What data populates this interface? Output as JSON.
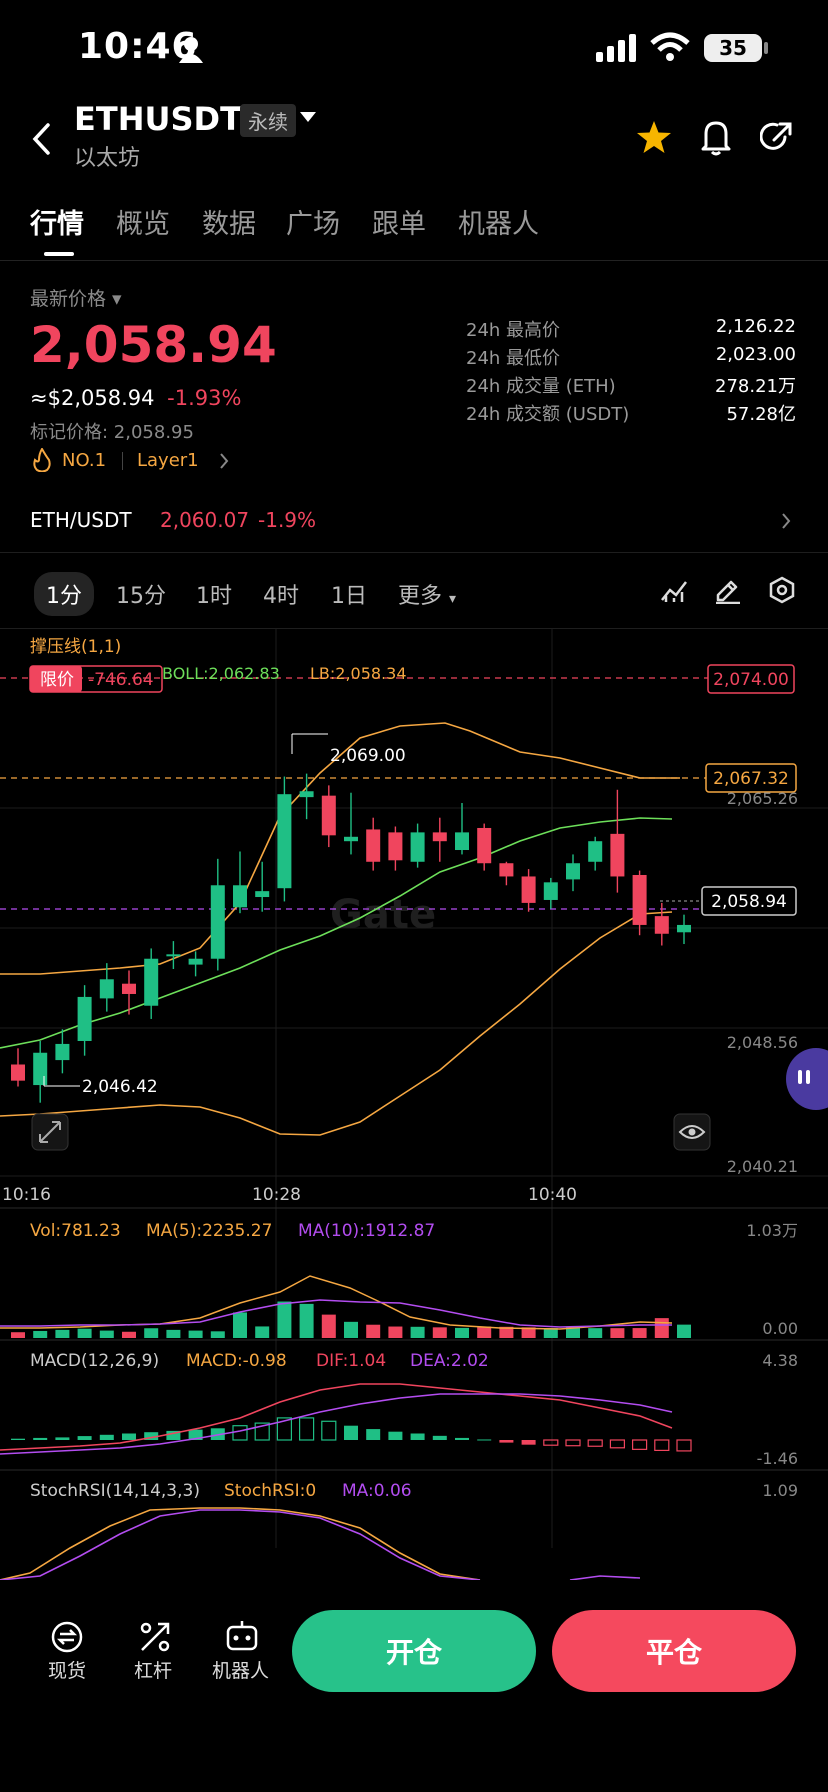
{
  "status_bar": {
    "time": "10:46",
    "battery": "35"
  },
  "header": {
    "symbol": "ETHUSDT",
    "badge": "永续",
    "name": "以太坊"
  },
  "tabs": [
    "行情",
    "概览",
    "数据",
    "广场",
    "跟单",
    "机器人"
  ],
  "price_block": {
    "label": "最新价格",
    "last_price": "2,058.94",
    "usd_equiv": "≈$2,058.94",
    "change_pct": "-1.93%",
    "mark_price": "标记价格: 2,058.95",
    "rank": "NO.1",
    "category": "Layer1"
  },
  "stats": [
    {
      "label": "24h 最高价",
      "value": "2,126.22"
    },
    {
      "label": "24h 最低价",
      "value": "2,023.00"
    },
    {
      "label": "24h 成交量 (ETH)",
      "value": "278.21万"
    },
    {
      "label": "24h 成交额 (USDT)",
      "value": "57.28亿"
    }
  ],
  "spot_pair": {
    "pair": "ETH/USDT",
    "price": "2,060.07",
    "change": "-1.9%"
  },
  "intervals": [
    "1分",
    "15分",
    "1时",
    "4时",
    "1日",
    "更多"
  ],
  "chart_labels": {
    "indicator": "撑压线(1,1)",
    "limit_label": "限价",
    "limit_value": "-746.64",
    "boll": "BOLL:2,062.83",
    "lb": "LB:2,058.34",
    "tag_top": "2,074.00",
    "tag_mid": "2,067.32",
    "tag_last": "2,058.94",
    "high_mark": "2,069.00",
    "low_mark": "2,046.42",
    "axis_right": [
      "2,065.26",
      "2,048.56",
      "2,040.21"
    ],
    "time_axis": [
      "10:16",
      "10:28",
      "10:40"
    ],
    "watermark": "Gate"
  },
  "vol_panel": {
    "vol": "Vol:781.23",
    "ma5": "MA(5):2235.27",
    "ma10": "MA(10):1912.87",
    "max": "1.03万",
    "min": "0.00"
  },
  "macd_panel": {
    "title": "MACD(12,26,9)",
    "macd": "MACD:-0.98",
    "dif": "DIF:1.04",
    "dea": "DEA:2.02",
    "max": "4.38",
    "min": "-1.46"
  },
  "stoch_panel": {
    "title": "StochRSI(14,14,3,3)",
    "k": "StochRSI:0",
    "ma": "MA:0.06",
    "max": "1.09"
  },
  "bottom_nav": {
    "spot": "现货",
    "leverage": "杠杆",
    "bot": "机器人",
    "open": "开仓",
    "close": "平仓"
  },
  "colors": {
    "up": "#1fbf85",
    "down": "#f0455e",
    "orange": "#f5a742",
    "green_line": "#6ddf5a",
    "purple": "#b34df0"
  },
  "chart_data": {
    "type": "candlestick",
    "x_ticks": [
      "10:16",
      "10:28",
      "10:40"
    ],
    "y_ticks": [
      2065.26,
      2048.56,
      2040.21
    ],
    "candles": [
      {
        "o": 2047.8,
        "h": 2048.9,
        "l": 2046.3,
        "c": 2046.7
      },
      {
        "o": 2046.4,
        "h": 2049.4,
        "l": 2045.2,
        "c": 2048.6
      },
      {
        "o": 2048.1,
        "h": 2050.2,
        "l": 2047.2,
        "c": 2049.2
      },
      {
        "o": 2049.4,
        "h": 2053.2,
        "l": 2048.4,
        "c": 2052.4
      },
      {
        "o": 2052.3,
        "h": 2054.7,
        "l": 2051.4,
        "c": 2053.6
      },
      {
        "o": 2053.3,
        "h": 2054.2,
        "l": 2051.2,
        "c": 2052.6
      },
      {
        "o": 2051.8,
        "h": 2055.7,
        "l": 2050.9,
        "c": 2055.0
      },
      {
        "o": 2055.3,
        "h": 2056.2,
        "l": 2054.3,
        "c": 2055.3
      },
      {
        "o": 2054.6,
        "h": 2055.5,
        "l": 2053.8,
        "c": 2055.0
      },
      {
        "o": 2055.0,
        "h": 2061.8,
        "l": 2054.2,
        "c": 2060.0
      },
      {
        "o": 2058.5,
        "h": 2062.3,
        "l": 2058.1,
        "c": 2060.0
      },
      {
        "o": 2059.2,
        "h": 2061.6,
        "l": 2058.2,
        "c": 2059.6
      },
      {
        "o": 2059.8,
        "h": 2067.4,
        "l": 2058.9,
        "c": 2066.2
      },
      {
        "o": 2066.0,
        "h": 2067.6,
        "l": 2064.5,
        "c": 2066.4
      },
      {
        "o": 2066.1,
        "h": 2066.8,
        "l": 2062.6,
        "c": 2063.4
      },
      {
        "o": 2063.0,
        "h": 2066.3,
        "l": 2062.1,
        "c": 2063.3
      },
      {
        "o": 2063.8,
        "h": 2064.6,
        "l": 2061.0,
        "c": 2061.6
      },
      {
        "o": 2063.6,
        "h": 2064.0,
        "l": 2061.0,
        "c": 2061.7
      },
      {
        "o": 2061.6,
        "h": 2064.2,
        "l": 2061.2,
        "c": 2063.6
      },
      {
        "o": 2063.6,
        "h": 2064.6,
        "l": 2061.6,
        "c": 2063.0
      },
      {
        "o": 2062.4,
        "h": 2065.6,
        "l": 2062.1,
        "c": 2063.6
      },
      {
        "o": 2063.9,
        "h": 2064.2,
        "l": 2061.0,
        "c": 2061.5
      },
      {
        "o": 2061.5,
        "h": 2061.6,
        "l": 2060.0,
        "c": 2060.6
      },
      {
        "o": 2060.6,
        "h": 2061.1,
        "l": 2058.2,
        "c": 2058.8
      },
      {
        "o": 2059.0,
        "h": 2060.5,
        "l": 2058.4,
        "c": 2060.2
      },
      {
        "o": 2060.4,
        "h": 2062.1,
        "l": 2059.6,
        "c": 2061.5
      },
      {
        "o": 2061.6,
        "h": 2063.3,
        "l": 2061.0,
        "c": 2063.0
      },
      {
        "o": 2063.5,
        "h": 2066.5,
        "l": 2059.5,
        "c": 2060.6
      },
      {
        "o": 2060.7,
        "h": 2061.0,
        "l": 2056.6,
        "c": 2057.3
      },
      {
        "o": 2057.9,
        "h": 2058.8,
        "l": 2055.9,
        "c": 2056.7
      },
      {
        "o": 2056.8,
        "h": 2058.0,
        "l": 2056.0,
        "c": 2057.3
      }
    ],
    "volumes": [
      640,
      780,
      900,
      1030,
      820,
      690,
      1080,
      900,
      820,
      740,
      2830,
      1280,
      4040,
      3780,
      2590,
      1790,
      1470,
      1270,
      1240,
      1180,
      1120,
      1270,
      1240,
      1180,
      1100,
      1210,
      1090,
      1090,
      1100,
      2200,
      1480
    ]
  }
}
